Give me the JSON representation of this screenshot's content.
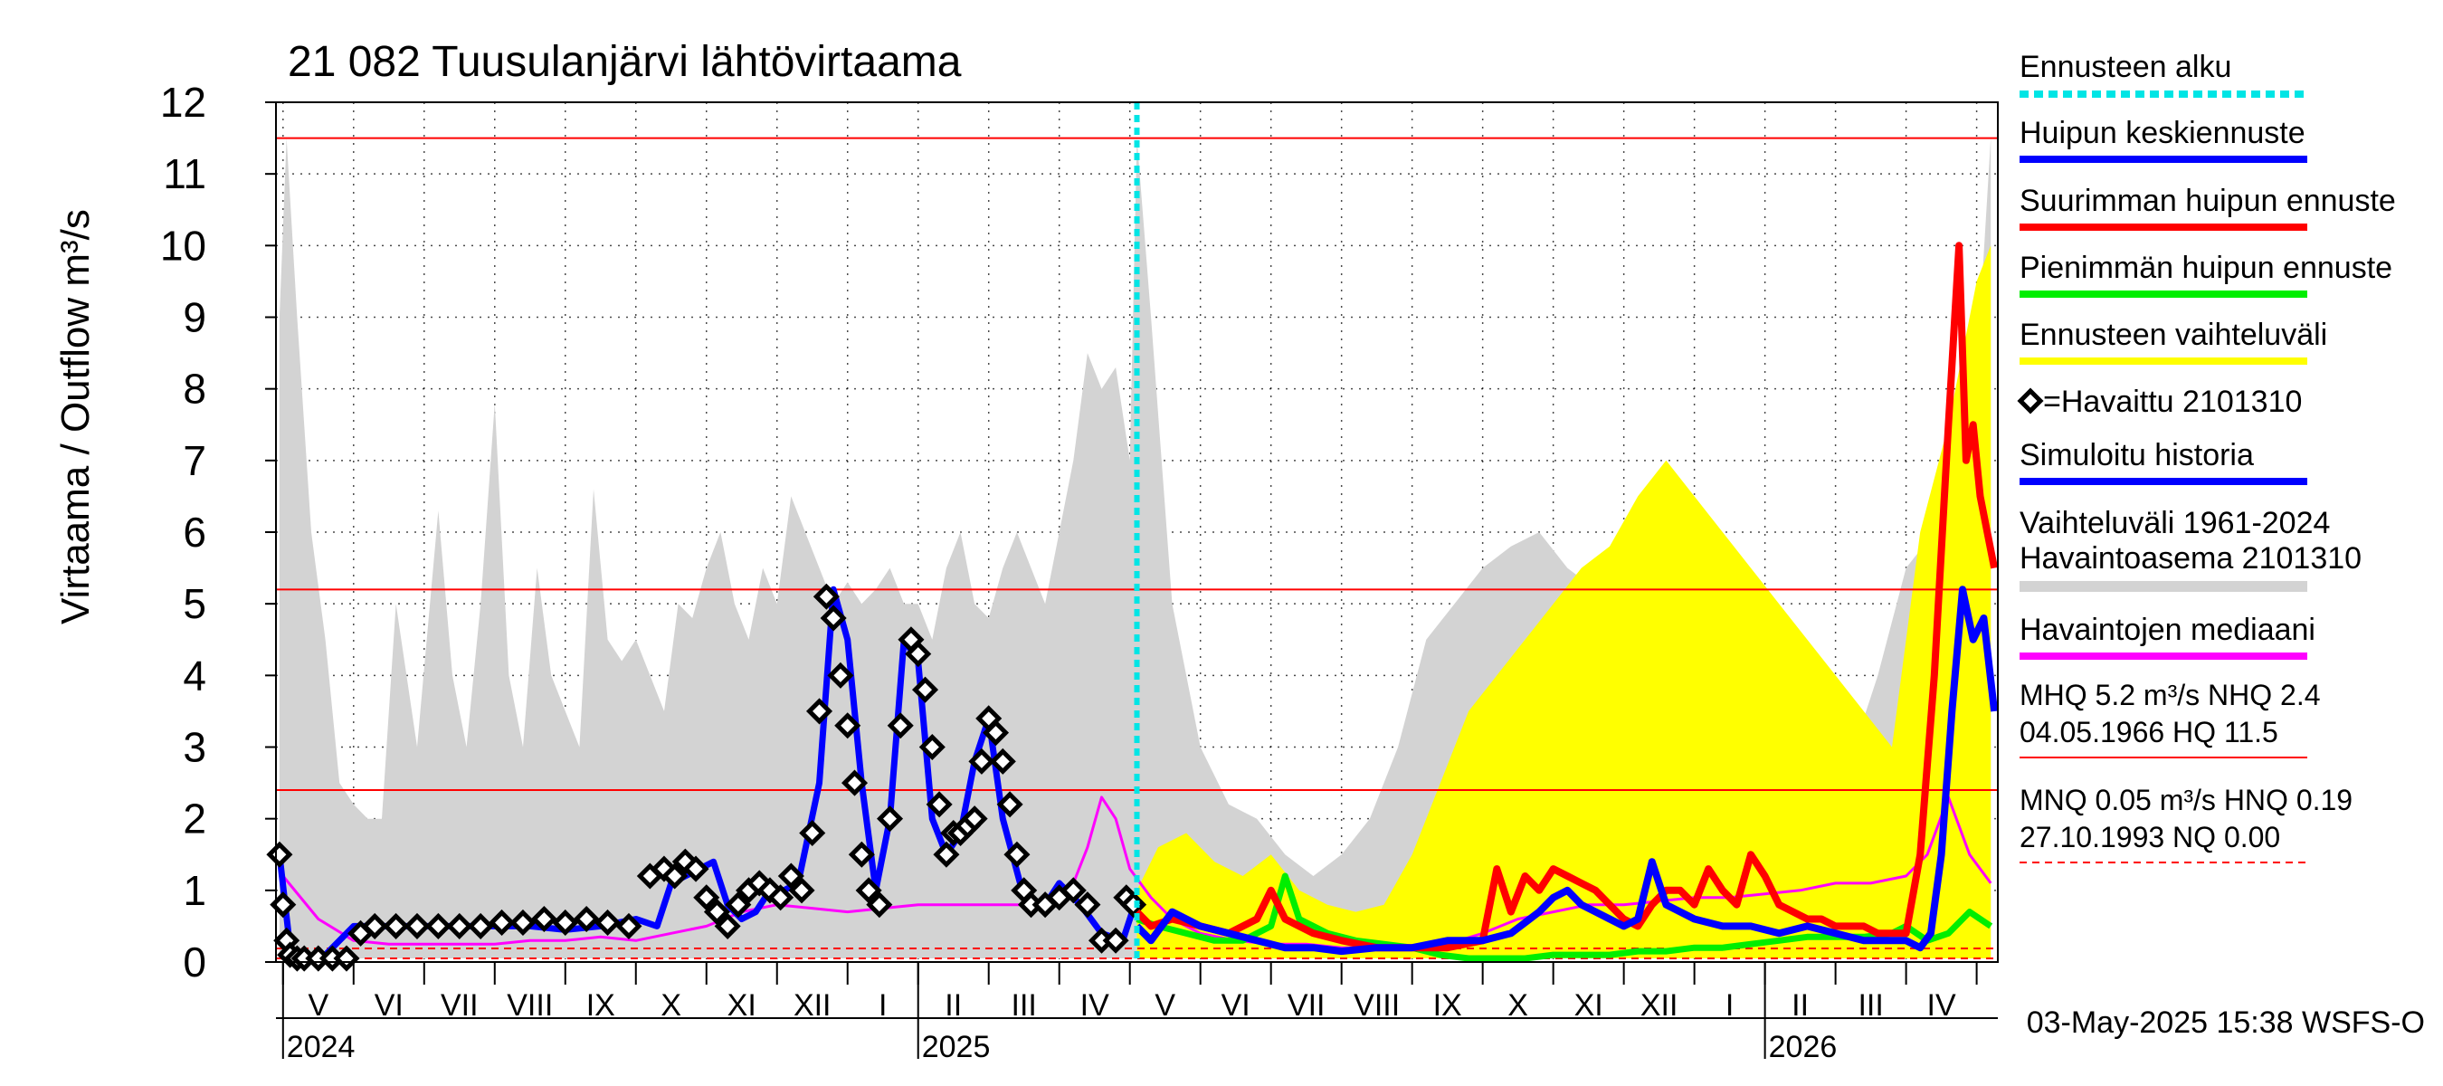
{
  "chart_data": {
    "type": "line",
    "title": "21 082 Tuusulanjärvi lähtövirtaama",
    "ylabel": "Virtaama / Outflow    m³/s",
    "ylim": [
      0,
      12
    ],
    "y_ticks": [
      "0",
      "1",
      "2",
      "3",
      "4",
      "5",
      "6",
      "7",
      "8",
      "9",
      "10",
      "11",
      "12"
    ],
    "x_unit": "months since start of April 2024",
    "xlim": [
      0.9,
      25.3
    ],
    "forecast_start": 13.1,
    "month_labels": [
      "V",
      "VI",
      "VII",
      "VIII",
      "IX",
      "X",
      "XI",
      "XII",
      "I",
      "II",
      "III",
      "IV",
      "V",
      "VI",
      "VII",
      "VIII",
      "IX",
      "X",
      "XI",
      "XII",
      "I",
      "II",
      "III",
      "IV"
    ],
    "year_labels": [
      {
        "label": "2024",
        "x": 1.0
      },
      {
        "label": "2025",
        "x": 10.0
      },
      {
        "label": "2026",
        "x": 22.0
      }
    ],
    "reference_lines": [
      {
        "name": "HQ",
        "value": 11.5,
        "style": "solid",
        "color": "#ff0000"
      },
      {
        "name": "MHQ",
        "value": 5.2,
        "style": "solid",
        "color": "#ff0000"
      },
      {
        "name": "NHQ",
        "value": 2.4,
        "style": "solid",
        "color": "#ff0000"
      },
      {
        "name": "HNQ",
        "value": 0.19,
        "style": "dashed",
        "color": "#ff0000"
      },
      {
        "name": "MNQ",
        "value": 0.05,
        "style": "dashed",
        "color": "#ff0000"
      }
    ],
    "series": [
      {
        "name": "Vaihteluväli 1961-2024 Havaintoasema 2101310",
        "kind": "band",
        "color": "#d3d3d3",
        "x": [
          0.95,
          1.05,
          1.2,
          1.4,
          1.6,
          1.8,
          2.0,
          2.2,
          2.4,
          2.6,
          2.9,
          3.2,
          3.4,
          3.6,
          3.8,
          4.0,
          4.2,
          4.4,
          4.6,
          4.8,
          5.0,
          5.2,
          5.4,
          5.6,
          5.8,
          6.0,
          6.2,
          6.4,
          6.6,
          6.8,
          7.0,
          7.2,
          7.4,
          7.6,
          7.8,
          8.0,
          8.2,
          8.4,
          8.6,
          8.8,
          9.0,
          9.2,
          9.4,
          9.6,
          9.8,
          10.0,
          10.2,
          10.4,
          10.6,
          10.8,
          11.0,
          11.2,
          11.4,
          11.6,
          11.8,
          12.0,
          12.2,
          12.4,
          12.6,
          12.8,
          13.0,
          13.1,
          13.3,
          13.6,
          14.0,
          14.4,
          14.8,
          15.2,
          15.6,
          16.0,
          16.4,
          16.8,
          17.2,
          17.6,
          18.0,
          18.4,
          18.8,
          19.2,
          19.6,
          20.0,
          20.4,
          20.8,
          21.2,
          21.6,
          22.0,
          22.4,
          22.8,
          23.2,
          23.6,
          24.0,
          24.4,
          24.8,
          25.2
        ],
        "values": [
          9.0,
          11.5,
          9.0,
          6.0,
          4.5,
          2.5,
          2.2,
          2.0,
          2.0,
          5.0,
          3.0,
          6.3,
          4.0,
          3.0,
          5.0,
          7.8,
          4.0,
          3.0,
          5.5,
          4.0,
          3.5,
          3.0,
          6.6,
          4.5,
          4.2,
          4.5,
          4.0,
          3.5,
          5.0,
          4.8,
          5.5,
          6.0,
          5.0,
          4.5,
          5.5,
          5.0,
          6.5,
          6.0,
          5.5,
          5.0,
          5.3,
          5.0,
          5.2,
          5.5,
          5.0,
          5.0,
          4.5,
          5.5,
          6.0,
          5.0,
          4.8,
          5.5,
          6.0,
          5.5,
          5.0,
          6.0,
          7.0,
          8.5,
          8.0,
          8.3,
          7.0,
          11.5,
          9.0,
          5.0,
          3.0,
          2.2,
          2.0,
          1.5,
          1.2,
          1.5,
          2.0,
          3.0,
          4.5,
          5.0,
          5.5,
          5.8,
          6.0,
          5.5,
          5.2,
          5.5,
          5.0,
          5.5,
          5.0,
          4.5,
          4.0,
          3.5,
          3.0,
          2.8,
          4.0,
          5.5,
          6.0,
          5.0,
          11.5
        ],
        "lower": 0.05
      },
      {
        "name": "Ennusteen vaihteluväli",
        "kind": "band",
        "color": "#ffff00",
        "x": [
          13.1,
          13.4,
          13.8,
          14.2,
          14.6,
          15.0,
          15.4,
          15.8,
          16.2,
          16.6,
          17.0,
          17.4,
          17.8,
          18.2,
          18.6,
          19.0,
          19.4,
          19.8,
          20.2,
          20.6,
          21.0,
          21.4,
          21.8,
          22.2,
          22.6,
          23.0,
          23.4,
          23.8,
          24.2,
          24.6,
          25.0,
          25.2
        ],
        "values": [
          1.0,
          1.6,
          1.8,
          1.4,
          1.2,
          1.5,
          1.0,
          0.8,
          0.7,
          0.8,
          1.5,
          2.5,
          3.5,
          4.0,
          4.5,
          5.0,
          5.5,
          5.8,
          6.5,
          7.0,
          6.5,
          6.0,
          5.5,
          5.0,
          4.5,
          4.0,
          3.5,
          3.0,
          6.0,
          7.5,
          9.5,
          10.0
        ],
        "lower": 0.05
      },
      {
        "name": "Havaintojen mediaani",
        "kind": "line",
        "color": "#ff00ff",
        "x": [
          1.0,
          1.5,
          2.0,
          2.5,
          3.0,
          3.5,
          4.0,
          4.5,
          5.0,
          5.5,
          6.0,
          6.5,
          7.0,
          7.5,
          8.0,
          8.5,
          9.0,
          9.5,
          10.0,
          10.5,
          11.0,
          11.5,
          12.0,
          12.2,
          12.4,
          12.6,
          12.8,
          13.0,
          13.3,
          13.6,
          14.0,
          14.5,
          15.0,
          15.5,
          16.0,
          16.5,
          17.0,
          17.5,
          18.0,
          18.5,
          19.0,
          19.5,
          20.0,
          20.5,
          21.0,
          21.5,
          22.0,
          22.5,
          23.0,
          23.5,
          24.0,
          24.3,
          24.6,
          24.9,
          25.2
        ],
        "values": [
          1.2,
          0.6,
          0.3,
          0.25,
          0.25,
          0.25,
          0.25,
          0.3,
          0.3,
          0.35,
          0.3,
          0.4,
          0.5,
          0.7,
          0.8,
          0.75,
          0.7,
          0.75,
          0.8,
          0.8,
          0.8,
          0.8,
          0.9,
          1.1,
          1.6,
          2.3,
          2.0,
          1.3,
          0.9,
          0.6,
          0.4,
          0.3,
          0.25,
          0.25,
          0.2,
          0.2,
          0.2,
          0.25,
          0.4,
          0.6,
          0.7,
          0.8,
          0.8,
          0.85,
          0.9,
          0.9,
          0.95,
          1.0,
          1.1,
          1.1,
          1.2,
          1.5,
          2.3,
          1.5,
          1.1
        ]
      },
      {
        "name": "Simuloitu historia",
        "kind": "line",
        "color": "#0000ff",
        "x": [
          0.95,
          1.1,
          1.3,
          1.6,
          2.0,
          2.5,
          3.0,
          3.5,
          4.0,
          4.5,
          5.0,
          5.5,
          6.0,
          6.3,
          6.5,
          6.7,
          6.9,
          7.1,
          7.3,
          7.5,
          7.7,
          7.9,
          8.1,
          8.3,
          8.6,
          8.8,
          9.0,
          9.2,
          9.4,
          9.6,
          9.8,
          10.0,
          10.2,
          10.4,
          10.6,
          10.8,
          11.0,
          11.2,
          11.5,
          11.8,
          12.0,
          12.3,
          12.6,
          12.9,
          13.1
        ],
        "values": [
          1.5,
          0.2,
          0.05,
          0.1,
          0.5,
          0.5,
          0.5,
          0.5,
          0.5,
          0.5,
          0.45,
          0.5,
          0.6,
          0.5,
          1.1,
          1.2,
          1.3,
          1.4,
          0.8,
          0.6,
          0.7,
          1.0,
          1.0,
          1.1,
          2.5,
          5.2,
          4.5,
          2.5,
          1.0,
          2.0,
          4.5,
          4.2,
          2.0,
          1.5,
          1.8,
          2.8,
          3.4,
          2.0,
          0.9,
          0.8,
          1.1,
          0.8,
          0.4,
          0.3,
          0.9
        ]
      },
      {
        "name": "Havaittu 2101310",
        "kind": "markers",
        "color": "#000000",
        "x": [
          0.95,
          1.0,
          1.05,
          1.1,
          1.2,
          1.3,
          1.5,
          1.7,
          1.9,
          2.1,
          2.3,
          2.6,
          2.9,
          3.2,
          3.5,
          3.8,
          4.1,
          4.4,
          4.7,
          5.0,
          5.3,
          5.6,
          5.9,
          6.2,
          6.4,
          6.55,
          6.7,
          6.85,
          7.0,
          7.15,
          7.3,
          7.45,
          7.6,
          7.75,
          7.9,
          8.05,
          8.2,
          8.35,
          8.5,
          8.6,
          8.7,
          8.8,
          8.9,
          9.0,
          9.1,
          9.2,
          9.3,
          9.45,
          9.6,
          9.75,
          9.9,
          10.0,
          10.1,
          10.2,
          10.3,
          10.4,
          10.5,
          10.6,
          10.7,
          10.8,
          10.9,
          11.0,
          11.1,
          11.2,
          11.3,
          11.4,
          11.5,
          11.6,
          11.8,
          12.0,
          12.2,
          12.4,
          12.6,
          12.8,
          12.95,
          13.05
        ],
        "values": [
          1.5,
          0.8,
          0.3,
          0.1,
          0.05,
          0.05,
          0.05,
          0.05,
          0.05,
          0.4,
          0.5,
          0.5,
          0.5,
          0.5,
          0.5,
          0.5,
          0.55,
          0.55,
          0.6,
          0.55,
          0.6,
          0.55,
          0.5,
          1.2,
          1.3,
          1.2,
          1.4,
          1.3,
          0.9,
          0.7,
          0.5,
          0.8,
          1.0,
          1.1,
          1.0,
          0.9,
          1.2,
          1.0,
          1.8,
          3.5,
          5.1,
          4.8,
          4.0,
          3.3,
          2.5,
          1.5,
          1.0,
          0.8,
          2.0,
          3.3,
          4.5,
          4.3,
          3.8,
          3.0,
          2.2,
          1.5,
          1.8,
          1.8,
          1.9,
          2.0,
          2.8,
          3.4,
          3.2,
          2.8,
          2.2,
          1.5,
          1.0,
          0.8,
          0.8,
          0.9,
          1.0,
          0.8,
          0.3,
          0.3,
          0.9,
          0.8
        ]
      },
      {
        "name": "Suurimman huipun ennuste",
        "kind": "line",
        "color": "#ff0000",
        "x": [
          13.1,
          13.3,
          13.6,
          14.0,
          14.4,
          14.8,
          15.0,
          15.2,
          15.6,
          16.0,
          16.5,
          17.0,
          17.5,
          18.0,
          18.2,
          18.4,
          18.6,
          18.8,
          19.0,
          19.2,
          19.4,
          19.6,
          19.8,
          20.0,
          20.2,
          20.4,
          20.6,
          20.8,
          21.0,
          21.2,
          21.4,
          21.6,
          21.8,
          22.0,
          22.2,
          22.4,
          22.6,
          22.8,
          23.0,
          23.2,
          23.4,
          23.6,
          23.8,
          24.0,
          24.2,
          24.4,
          24.6,
          24.75,
          24.85,
          24.95,
          25.05,
          25.15,
          25.25
        ],
        "values": [
          0.7,
          0.5,
          0.6,
          0.5,
          0.4,
          0.6,
          1.0,
          0.6,
          0.4,
          0.3,
          0.2,
          0.2,
          0.2,
          0.3,
          1.3,
          0.7,
          1.2,
          1.0,
          1.3,
          1.2,
          1.1,
          1.0,
          0.8,
          0.6,
          0.5,
          0.8,
          1.0,
          1.0,
          0.8,
          1.3,
          1.0,
          0.8,
          1.5,
          1.2,
          0.8,
          0.7,
          0.6,
          0.6,
          0.5,
          0.5,
          0.5,
          0.4,
          0.4,
          0.4,
          1.5,
          4.0,
          7.5,
          10.0,
          7.0,
          7.5,
          6.5,
          6.0,
          5.5
        ]
      },
      {
        "name": "Pienimmän huipun ennuste",
        "kind": "line",
        "color": "#00ee00",
        "x": [
          13.1,
          13.4,
          13.8,
          14.2,
          14.6,
          15.0,
          15.2,
          15.4,
          15.8,
          16.2,
          16.6,
          17.0,
          17.4,
          17.8,
          18.2,
          18.6,
          19.0,
          19.4,
          19.8,
          20.2,
          20.6,
          21.0,
          21.4,
          21.8,
          22.2,
          22.6,
          23.0,
          23.4,
          23.8,
          24.0,
          24.3,
          24.6,
          24.9,
          25.2
        ],
        "values": [
          0.6,
          0.5,
          0.4,
          0.3,
          0.3,
          0.5,
          1.2,
          0.6,
          0.4,
          0.3,
          0.25,
          0.2,
          0.1,
          0.05,
          0.05,
          0.05,
          0.1,
          0.1,
          0.1,
          0.15,
          0.15,
          0.2,
          0.2,
          0.25,
          0.3,
          0.35,
          0.35,
          0.35,
          0.4,
          0.5,
          0.3,
          0.4,
          0.7,
          0.5
        ]
      },
      {
        "name": "Huipun keskiennuste",
        "kind": "line",
        "color": "#0000ff",
        "x": [
          13.1,
          13.3,
          13.6,
          14.0,
          14.4,
          14.8,
          15.2,
          15.6,
          16.0,
          16.5,
          17.0,
          17.5,
          18.0,
          18.4,
          18.8,
          19.0,
          19.2,
          19.4,
          19.6,
          19.8,
          20.0,
          20.2,
          20.4,
          20.6,
          21.0,
          21.4,
          21.8,
          22.2,
          22.6,
          23.0,
          23.4,
          23.8,
          24.0,
          24.2,
          24.35,
          24.5,
          24.65,
          24.8,
          24.95,
          25.1,
          25.25
        ],
        "values": [
          0.5,
          0.3,
          0.7,
          0.5,
          0.4,
          0.3,
          0.2,
          0.2,
          0.15,
          0.2,
          0.2,
          0.3,
          0.3,
          0.4,
          0.7,
          0.9,
          1.0,
          0.8,
          0.7,
          0.6,
          0.5,
          0.6,
          1.4,
          0.8,
          0.6,
          0.5,
          0.5,
          0.4,
          0.5,
          0.4,
          0.3,
          0.3,
          0.3,
          0.2,
          0.4,
          1.5,
          3.5,
          5.2,
          4.5,
          4.8,
          3.5
        ]
      }
    ],
    "legend_position": "right"
  },
  "legend": {
    "items": [
      {
        "label": "Ennusteen alku",
        "color": "#00e5e5",
        "style": "dotted"
      },
      {
        "label": "Huipun keskiennuste",
        "color": "#0000ff",
        "style": "solid"
      },
      {
        "label": "Suurimman huipun ennuste",
        "color": "#ff0000",
        "style": "solid"
      },
      {
        "label": "Pienimmän huipun ennuste",
        "color": "#00ee00",
        "style": "solid"
      },
      {
        "label": "Ennusteen vaihteluväli",
        "color": "#ffff00",
        "style": "solid"
      },
      {
        "label": "=Havaittu 2101310",
        "color": "#000000",
        "style": "marker"
      },
      {
        "label": "Simuloitu historia",
        "color": "#0000ff",
        "style": "solid"
      },
      {
        "label_line1": "Vaihteluväli 1961-2024",
        "label_line2": " Havaintoasema 2101310",
        "color": "#d3d3d3",
        "style": "solid"
      },
      {
        "label": "Havaintojen mediaani",
        "color": "#ff00ff",
        "style": "solid"
      }
    ],
    "stats1_line1": "MHQ  5.2 m³/s NHQ  2.4",
    "stats1_line2": "04.05.1966 HQ 11.5",
    "stats2_line1": "MNQ 0.05 m³/s HNQ 0.19",
    "stats2_line2": "27.10.1993 NQ 0.00"
  },
  "footer": {
    "timestamp": "03-May-2025 15:38 WSFS-O"
  }
}
